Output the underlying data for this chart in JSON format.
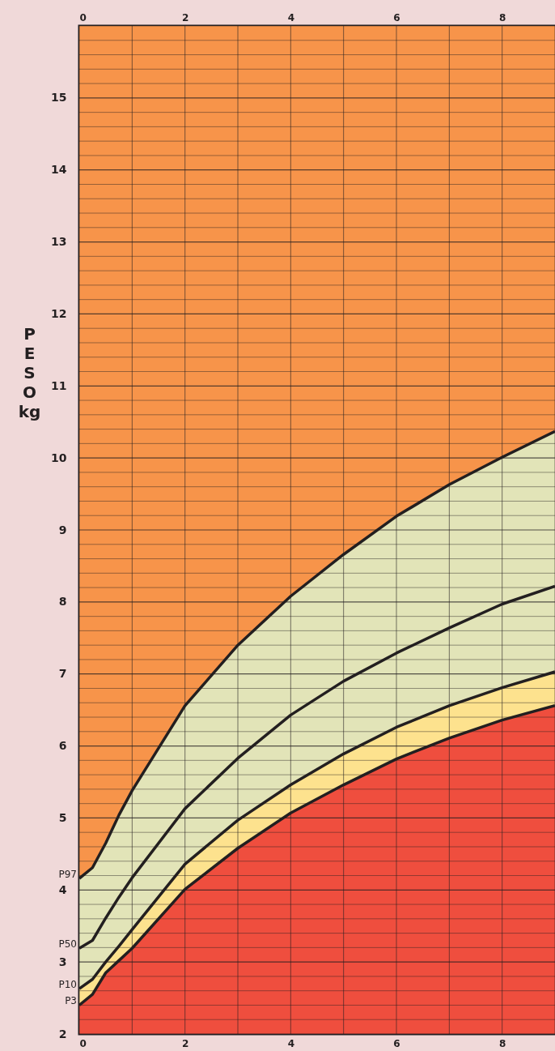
{
  "chart_data": {
    "type": "line",
    "ylabel": "PESO kg",
    "x": [
      0,
      0.25,
      0.5,
      0.75,
      1,
      2,
      3,
      4,
      5,
      6,
      7,
      8,
      9
    ],
    "series": [
      {
        "name": "P97",
        "type": "area",
        "color": "#e2e4b8",
        "values": [
          4.16,
          4.31,
          4.65,
          5.04,
          5.38,
          6.56,
          7.4,
          8.08,
          8.66,
          9.19,
          9.63,
          10.01,
          10.37
        ]
      },
      {
        "name": "P50",
        "color": "#231f20",
        "values": [
          3.19,
          3.3,
          3.61,
          3.9,
          4.17,
          5.13,
          5.83,
          6.43,
          6.9,
          7.29,
          7.64,
          7.97,
          8.22
        ]
      },
      {
        "name": "P10",
        "type": "area",
        "color": "#fde28e",
        "values": [
          2.63,
          2.76,
          3.0,
          3.22,
          3.45,
          4.36,
          4.97,
          5.46,
          5.89,
          6.26,
          6.56,
          6.81,
          7.03
        ]
      },
      {
        "name": "P3",
        "type": "area",
        "color": "#ef4e3e",
        "values": [
          2.4,
          2.55,
          2.85,
          3.02,
          3.19,
          4.01,
          4.58,
          5.07,
          5.46,
          5.82,
          6.11,
          6.36,
          6.56
        ]
      }
    ],
    "bands": [
      {
        "axis": "y",
        "from": 2,
        "to": 16,
        "color": "#f7944a"
      }
    ],
    "xlim": [
      0,
      9
    ],
    "xticks": [
      0,
      2,
      4,
      6,
      8
    ],
    "x2lim": [
      0,
      9
    ],
    "x2ticks": [
      0,
      2,
      4,
      6,
      8
    ],
    "ylim": [
      2,
      16
    ],
    "yticks": [
      2,
      3,
      4,
      5,
      6,
      7,
      8,
      9,
      10,
      11,
      12,
      13,
      14,
      15
    ],
    "grid": true,
    "marker": "none",
    "line_style": "solid"
  }
}
